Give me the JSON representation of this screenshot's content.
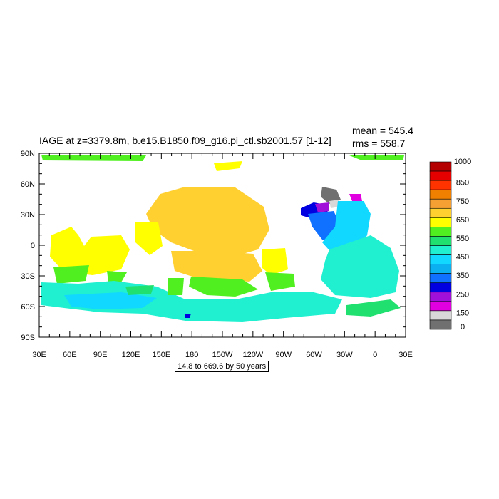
{
  "title": "IAGE at z=3379.8m, b.e15.B1850.f09_g16.pi_ctl.sb2001.57 [1-12]",
  "stats": {
    "mean": "mean = 545.4",
    "rms": "rms = 558.7"
  },
  "range_note": "14.8 to 669.6 by 50 years",
  "map": {
    "lat_ticks": [
      "90N",
      "60N",
      "30N",
      "0",
      "30S",
      "60S",
      "90S"
    ],
    "lon_ticks": [
      "30E",
      "60E",
      "90E",
      "120E",
      "150E",
      "180",
      "150W",
      "120W",
      "90W",
      "60W",
      "30W",
      "0",
      "30E"
    ]
  },
  "colorbar": {
    "labels": [
      "1000",
      "850",
      "750",
      "650",
      "550",
      "450",
      "350",
      "250",
      "150",
      "0"
    ],
    "colors": [
      "#b40000",
      "#e60000",
      "#ff3300",
      "#f08000",
      "#f5a033",
      "#ffd030",
      "#ffff00",
      "#50f020",
      "#20e070",
      "#20f0d0",
      "#10d8ff",
      "#0ab0f0",
      "#1070ff",
      "#0000e0",
      "#a010d8",
      "#e000e0",
      "#d8d8d8",
      "#707070"
    ]
  }
}
